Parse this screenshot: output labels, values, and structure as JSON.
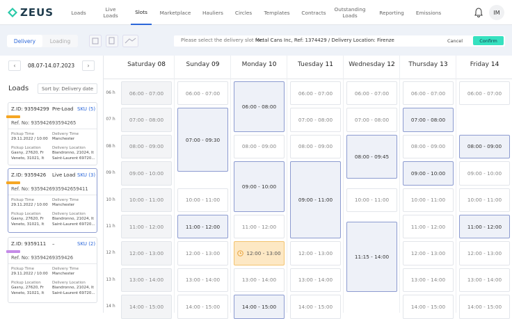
{
  "header": {
    "logo": "ZEUS",
    "nav": [
      "Loads",
      "Live Loads",
      "Slots",
      "Marketplace",
      "Hauliers",
      "Circles",
      "Templates",
      "Contracts",
      "Outstanding Loads",
      "Reporting",
      "Emissions"
    ],
    "avatar": "IM"
  },
  "toolbar": {
    "tabs": [
      "Delivery",
      "Loading"
    ],
    "prompt": "Please select the delivery slot for:",
    "selection": "Metal Cans Inc, Ref: 1374429 / Delivery Location: Firenze",
    "cancel": "Cancel",
    "confirm": "Confirm"
  },
  "calendar": {
    "date_range": "08.07-14.07.2023",
    "hours": [
      "06 h",
      "07 h",
      "08 h",
      "09 h",
      "10 h",
      "11 h",
      "12 h",
      "13 h",
      "14 h"
    ],
    "days": [
      {
        "name": "Saturday",
        "date": "08",
        "slots": [
          "06:00 - 07:00",
          "07:00 - 08:00",
          "08:00 - 09:00",
          "09:00 - 10:00",
          "10:00 - 11:00",
          "11:00 - 12:00",
          "12:00 - 13:00",
          "13:00 - 14:00",
          "14:00 - 15:00"
        ]
      },
      {
        "name": "Sunday",
        "date": "09",
        "slots": [
          "06:00 - 07:00",
          "07:00 - 09:30",
          "10:00 - 11:00",
          "11:00 - 12:00",
          "12:00 - 13:00",
          "13:00 - 14:00",
          "14:00 - 15:00"
        ]
      },
      {
        "name": "Monday",
        "date": "10",
        "slots": [
          "06:00 - 08:00",
          "08:00 - 09:00",
          "09:00 - 10:00",
          "11:00 - 12:00",
          "12:00 - 13:00",
          "13:00 - 14:00",
          "14:00 - 15:00"
        ]
      },
      {
        "name": "Tuesday",
        "date": "11",
        "slots": [
          "06:00 - 07:00",
          "07:00 - 08:00",
          "08:00 - 09:00",
          "09:00 - 11:00",
          "12:00 - 13:00",
          "13:00 - 14:00",
          "14:00 - 15:00"
        ]
      },
      {
        "name": "Wednesday",
        "date": "12",
        "slots": [
          "06:00 - 07:00",
          "07:00 - 08:00",
          "08:00 - 09:45",
          "10:00 - 11:00",
          "11:15 - 14:00"
        ]
      },
      {
        "name": "Thursday",
        "date": "13",
        "slots": [
          "06:00 - 07:00",
          "07:00 - 08:00",
          "08:00 - 09:00",
          "09:00 - 10:00",
          "10:00 - 11:00",
          "11:00 - 12:00",
          "12:00 - 13:00",
          "13:00 - 14:00",
          "14:00 - 15:00"
        ]
      },
      {
        "name": "Friday",
        "date": "14",
        "slots": [
          "06:00 - 07:00",
          "08:00 - 09:00",
          "09:00 - 10:00",
          "10:00 - 11:00",
          "11:00 - 12:00",
          "12:00 - 13:00",
          "13:00 - 14:00",
          "14:00 - 15:00"
        ]
      }
    ]
  },
  "loads": {
    "title": "Loads",
    "sort": "Sort by: Delivery date",
    "cards": [
      {
        "zid": "Z.ID: 93594299",
        "status": "Pre-Load",
        "sku": "SKU (5)",
        "ref": "Ref. No: 935942693594265",
        "pickup_time_label": "Pickup Time",
        "pickup_time": "29.11.2022 / 10:00",
        "delivery_time_label": "Delivery Time",
        "delivery_time": "Manchester",
        "pickup_location_label": "Pickup Location",
        "pickup_location": [
          "Gasny, 27620, Fr",
          "Veneto, 31021, It"
        ],
        "delivery_location_label": "Delivery Location",
        "delivery_location": [
          "Biandronno, 21024, It",
          "Saint-Laurent 69720..."
        ]
      },
      {
        "zid": "Z.ID: 9359426",
        "status": "Live Load",
        "sku": "SKU (3)",
        "ref": "Ref. No: 9359426935942659411",
        "pickup_time_label": "Pickup Time",
        "pickup_time": "29.11.2022 / 10:00",
        "delivery_time_label": "Delivery Time",
        "delivery_time": "Manchester",
        "pickup_location_label": "Pickup Location",
        "pickup_location": [
          "Gasny, 27620, Fr",
          "Veneto, 31021, It"
        ],
        "delivery_location_label": "Delivery Location",
        "delivery_location": [
          "Biandronno, 21024, It",
          "Saint-Laurent 69720..."
        ]
      },
      {
        "zid": "Z.ID: 9359111",
        "status": "–",
        "sku": "SKU (2)",
        "ref": "Ref. No: 93594269359426",
        "pickup_time_label": "Pickup Time",
        "pickup_time": "29.11.2022 / 10:00",
        "delivery_time_label": "Delivery Time",
        "delivery_time": "Manchester",
        "pickup_location_label": "Pickup Location",
        "pickup_location": [
          "Gasny, 27620, Fr",
          "Veneto, 31021, It"
        ],
        "delivery_location_label": "Delivery Location",
        "delivery_location": [
          "Biandronno, 21024, It",
          "Saint-Laurent 69720..."
        ]
      }
    ]
  }
}
